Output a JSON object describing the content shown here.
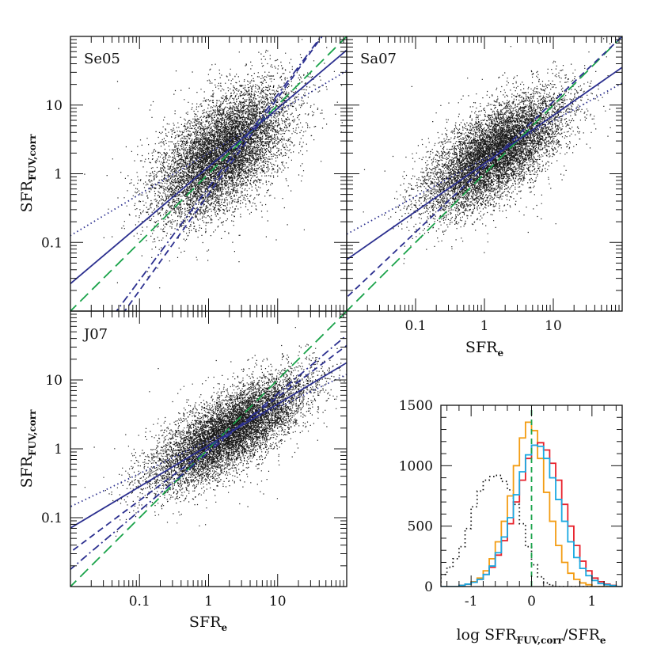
{
  "chart_data": [
    {
      "id": "se05",
      "type": "scatter",
      "panel_label": "Se05",
      "xscale": "log",
      "yscale": "log",
      "xlim": [
        0.01,
        100
      ],
      "ylim": [
        0.01,
        100
      ],
      "x_tick_labels": [],
      "y_tick_labels": [
        "0.1",
        "1",
        "10"
      ],
      "y_tick_values": [
        0.1,
        1,
        10
      ],
      "ylabel_main": "SFR",
      "ylabel_sub": "FUV,corr",
      "cloud": {
        "center_log": [
          0.2,
          0.3
        ],
        "major_slope": 1.0,
        "spread_major": 0.6,
        "spread_minor": 0.3,
        "points": 9000
      },
      "lines": [
        {
          "style": "long-dash",
          "color": "#1aa34a",
          "slope": 1.0,
          "intercept": 0.0
        },
        {
          "style": "solid",
          "color": "#2b2f8f",
          "slope": 0.85,
          "intercept": 0.1
        },
        {
          "style": "dotted",
          "color": "#2b2f8f",
          "slope": 0.6,
          "intercept": 0.3
        },
        {
          "style": "dash-dot",
          "color": "#2b2f8f",
          "slope": 1.35,
          "intercept": -0.2
        },
        {
          "style": "short-dash",
          "color": "#2b2f8f",
          "slope": 1.4,
          "intercept": -0.3
        }
      ]
    },
    {
      "id": "sa07",
      "type": "scatter",
      "panel_label": "Sa07",
      "xscale": "log",
      "yscale": "log",
      "xlim": [
        0.01,
        100
      ],
      "ylim": [
        0.01,
        100
      ],
      "x_tick_labels": [
        "0.1",
        "1",
        "10"
      ],
      "x_tick_values": [
        0.1,
        1,
        10
      ],
      "y_tick_labels": [],
      "xlabel_main": "SFR",
      "xlabel_sub": "e",
      "cloud": {
        "center_log": [
          0.15,
          0.3
        ],
        "major_slope": 0.8,
        "spread_major": 0.6,
        "spread_minor": 0.25,
        "points": 9000
      },
      "lines": [
        {
          "style": "long-dash",
          "color": "#1aa34a",
          "slope": 1.0,
          "intercept": 0.0
        },
        {
          "style": "solid",
          "color": "#2b2f8f",
          "slope": 0.7,
          "intercept": 0.15
        },
        {
          "style": "dotted",
          "color": "#2b2f8f",
          "slope": 0.55,
          "intercept": 0.22
        },
        {
          "style": "short-dash",
          "color": "#2b2f8f",
          "slope": 0.95,
          "intercept": 0.1
        }
      ]
    },
    {
      "id": "j07",
      "type": "scatter",
      "panel_label": "J07",
      "xscale": "log",
      "yscale": "log",
      "xlim": [
        0.01,
        100
      ],
      "ylim": [
        0.01,
        100
      ],
      "x_tick_labels": [
        "0.1",
        "1",
        "10"
      ],
      "x_tick_values": [
        0.1,
        1,
        10
      ],
      "y_tick_labels": [
        "0.1",
        "1",
        "10"
      ],
      "y_tick_values": [
        0.1,
        1,
        10
      ],
      "xlabel_main": "SFR",
      "xlabel_sub": "e",
      "ylabel_main": "SFR",
      "ylabel_sub": "FUV,corr",
      "cloud": {
        "center_log": [
          0.3,
          0.25
        ],
        "major_slope": 0.65,
        "spread_major": 0.65,
        "spread_minor": 0.22,
        "points": 9000
      },
      "lines": [
        {
          "style": "long-dash",
          "color": "#1aa34a",
          "slope": 1.0,
          "intercept": 0.0
        },
        {
          "style": "solid",
          "color": "#2b2f8f",
          "slope": 0.6,
          "intercept": 0.05
        },
        {
          "style": "dotted",
          "color": "#2b2f8f",
          "slope": 0.48,
          "intercept": 0.12
        },
        {
          "style": "short-dash",
          "color": "#2b2f8f",
          "slope": 0.75,
          "intercept": 0.0
        },
        {
          "style": "dash-dot",
          "color": "#2b2f8f",
          "slope": 0.85,
          "intercept": -0.05
        }
      ]
    },
    {
      "id": "hist",
      "type": "line",
      "xlim": [
        -1.5,
        1.5
      ],
      "ylim": [
        0,
        1500
      ],
      "x_tick_labels": [
        "-1",
        "0",
        "1"
      ],
      "x_tick_values": [
        -1,
        0,
        1
      ],
      "y_tick_labels": [
        "0",
        "500",
        "1000",
        "1500"
      ],
      "y_tick_values": [
        0,
        500,
        1000,
        1500
      ],
      "xlabel_pre": "log SFR",
      "xlabel_sub": "FUV,corr",
      "xlabel_post": "/SFR",
      "xlabel_sub2": "e",
      "vline": {
        "x": 0,
        "color": "#1aa34a",
        "style": "dashed"
      },
      "bin_edges": [
        -1.5,
        -1.4,
        -1.3,
        -1.2,
        -1.1,
        -1.0,
        -0.9,
        -0.8,
        -0.7,
        -0.6,
        -0.5,
        -0.4,
        -0.3,
        -0.2,
        -0.1,
        0.0,
        0.1,
        0.2,
        0.3,
        0.4,
        0.5,
        0.6,
        0.7,
        0.8,
        0.9,
        1.0,
        1.1,
        1.2,
        1.3,
        1.4,
        1.5
      ],
      "series": [
        {
          "color": "#111111",
          "style": "dotted",
          "values": [
            100,
            160,
            230,
            330,
            480,
            660,
            790,
            880,
            910,
            920,
            870,
            800,
            680,
            520,
            330,
            180,
            80,
            30,
            10,
            0,
            0,
            0,
            0,
            0,
            0,
            0,
            0,
            0,
            0,
            0
          ]
        },
        {
          "color": "#f39c12",
          "style": "solid",
          "values": [
            0,
            0,
            0,
            10,
            20,
            40,
            70,
            130,
            230,
            370,
            540,
            750,
            1000,
            1230,
            1360,
            1290,
            1060,
            780,
            540,
            340,
            200,
            110,
            60,
            30,
            15,
            0,
            0,
            0,
            0,
            0
          ]
        },
        {
          "color": "#e8202a",
          "style": "solid",
          "values": [
            0,
            0,
            0,
            10,
            20,
            35,
            60,
            100,
            160,
            260,
            380,
            520,
            700,
            880,
            1060,
            1170,
            1190,
            1130,
            1020,
            880,
            680,
            500,
            340,
            210,
            130,
            70,
            40,
            20,
            10,
            0
          ]
        },
        {
          "color": "#19a9e2",
          "style": "solid",
          "values": [
            0,
            0,
            0,
            10,
            20,
            35,
            60,
            100,
            170,
            280,
            410,
            570,
            760,
            950,
            1090,
            1170,
            1160,
            1060,
            900,
            720,
            540,
            370,
            240,
            150,
            90,
            50,
            25,
            15,
            8,
            0
          ]
        }
      ]
    }
  ]
}
